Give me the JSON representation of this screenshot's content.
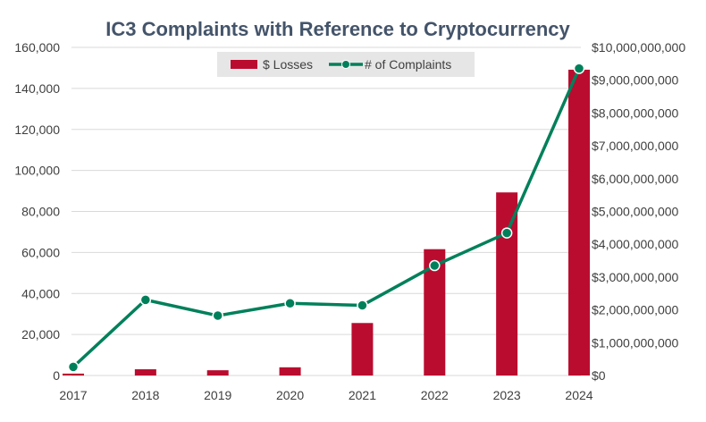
{
  "chart_data": {
    "type": "bar",
    "title": "IC3 Complaints with Reference to Cryptocurrency",
    "categories": [
      "2017",
      "2018",
      "2019",
      "2020",
      "2021",
      "2022",
      "2023",
      "2024"
    ],
    "series": [
      {
        "name": "$ Losses",
        "type": "bar",
        "axis": "right",
        "values": [
          58000000,
          190000000,
          160000000,
          250000000,
          1600000000,
          3850000000,
          5580000000,
          9320000000
        ]
      },
      {
        "name": "# of Complaints",
        "type": "line",
        "axis": "left",
        "values": [
          4200,
          36900,
          29200,
          35200,
          34200,
          53600,
          69500,
          149700
        ]
      }
    ],
    "y_left": {
      "lim": [
        0,
        160000
      ],
      "ticks": [
        0,
        20000,
        40000,
        60000,
        80000,
        100000,
        120000,
        140000,
        160000
      ],
      "tick_labels": [
        "0",
        "20,000",
        "40,000",
        "60,000",
        "80,000",
        "100,000",
        "120,000",
        "140,000",
        "160,000"
      ]
    },
    "y_right": {
      "lim": [
        0,
        10000000000
      ],
      "ticks": [
        0,
        1000000000,
        2000000000,
        3000000000,
        4000000000,
        5000000000,
        6000000000,
        7000000000,
        8000000000,
        9000000000,
        10000000000
      ],
      "tick_labels": [
        "$0",
        "$1,000,000,000",
        "$2,000,000,000",
        "$3,000,000,000",
        "$4,000,000,000",
        "$5,000,000,000",
        "$6,000,000,000",
        "$7,000,000,000",
        "$8,000,000,000",
        "$9,000,000,000",
        "$10,000,000,000"
      ]
    },
    "grid": true,
    "legend_position": "top-center",
    "colors": {
      "bars": "#ba0c2f",
      "line": "#00805a",
      "marker_stroke": "#ffffff",
      "grid": "#d9d9d9",
      "title": "#44546a",
      "legend_bg": "#e7e6e6"
    }
  }
}
